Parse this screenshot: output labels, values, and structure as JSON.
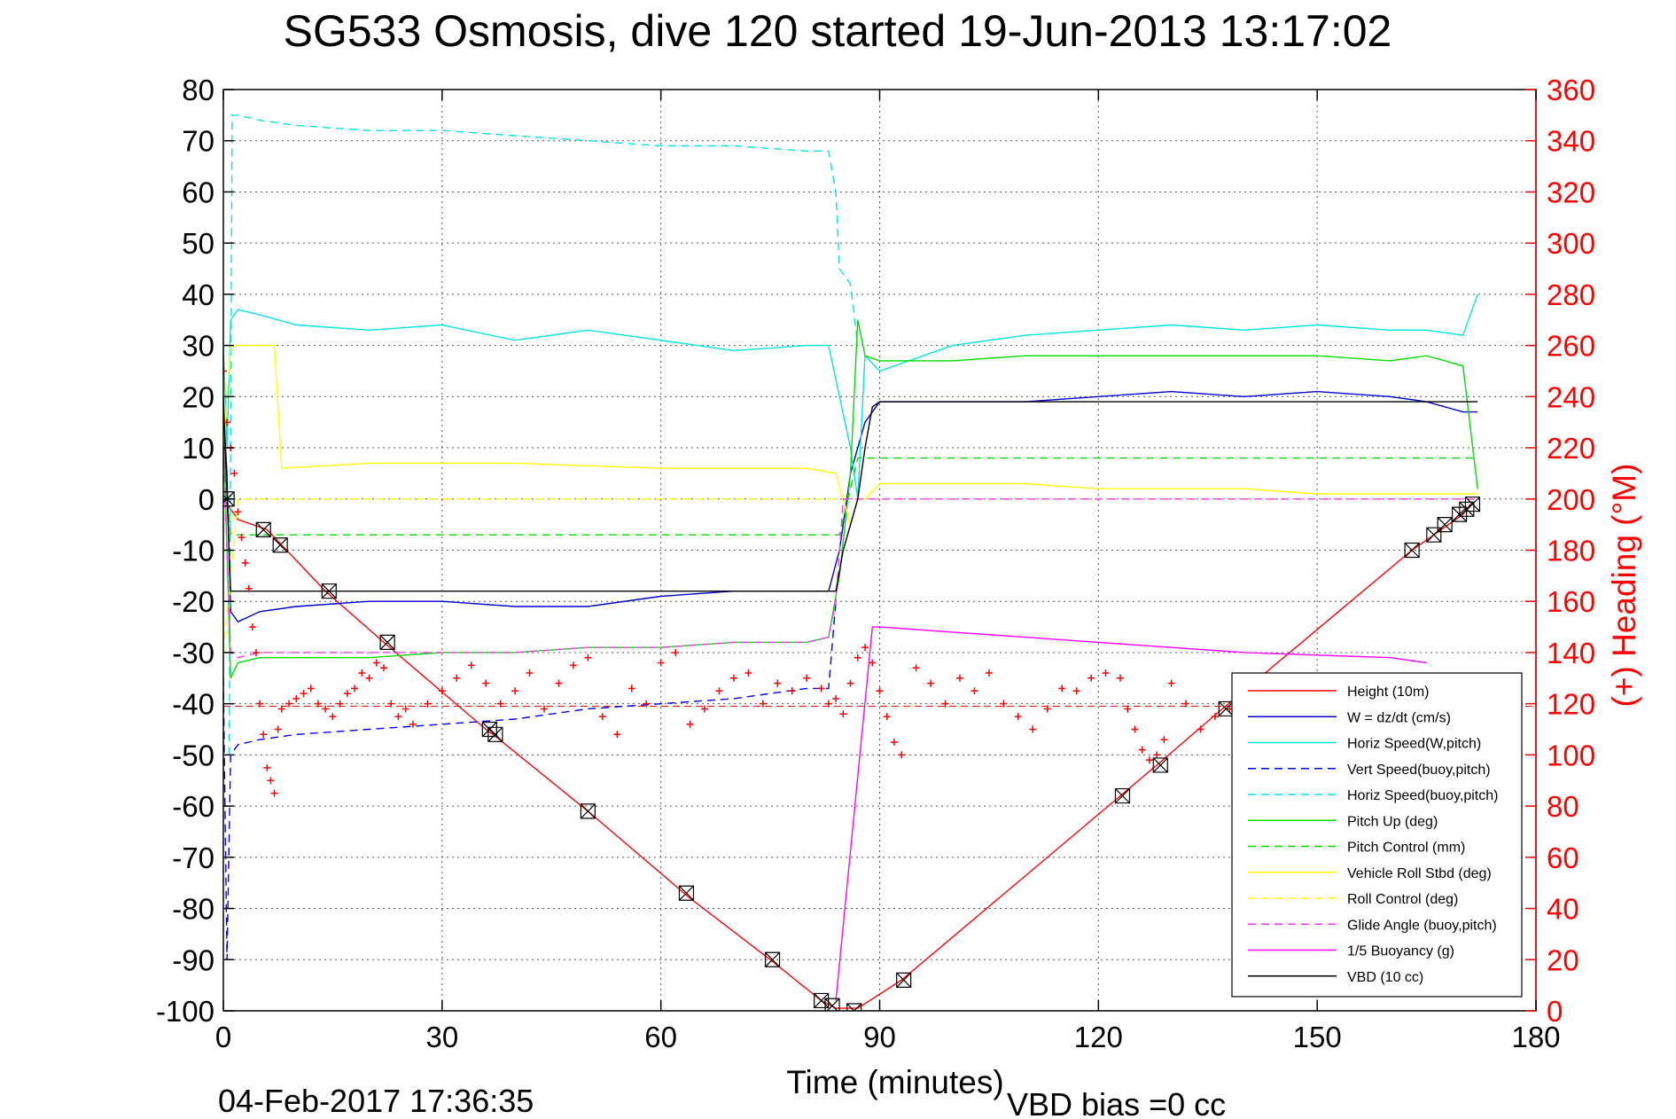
{
  "chart_data": {
    "type": "line",
    "title": "SG533 Osmosis, dive 120 started 19-Jun-2013 13:17:02",
    "xlabel": "Time (minutes)",
    "ylabel_right": "(+) Heading (°M)",
    "timestamp": "04-Feb-2017 17:36:35",
    "vbd_bias": "VBD bias =0 cc",
    "xlim": [
      0,
      180
    ],
    "ylim": [
      -100,
      80
    ],
    "ylim_right": [
      0,
      360
    ],
    "xticks": [
      "0",
      "30",
      "60",
      "90",
      "120",
      "150",
      "180"
    ],
    "yticks": [
      "80",
      "70",
      "60",
      "50",
      "40",
      "30",
      "20",
      "10",
      "0",
      "-10",
      "-20",
      "-30",
      "-40",
      "-50",
      "-60",
      "-70",
      "-80",
      "-90",
      "-100"
    ],
    "yticks_right": [
      "360",
      "340",
      "320",
      "300",
      "280",
      "260",
      "240",
      "220",
      "200",
      "180",
      "160",
      "140",
      "120",
      "100",
      "80",
      "60",
      "40",
      "20",
      "0"
    ],
    "grid": true,
    "legend_position": "bottom-right",
    "heading_reference": 119,
    "series": [
      {
        "name": "Height (10m)",
        "color": "#ff0000",
        "style": "solid",
        "x": [
          0,
          2,
          6,
          8,
          14,
          22,
          36,
          37,
          50,
          64,
          75,
          82,
          84,
          87,
          93,
          123,
          128,
          137,
          163,
          166,
          168,
          170,
          171
        ],
        "y": [
          0,
          -4,
          -6,
          -9,
          -18,
          -28,
          -45,
          -46,
          -61,
          -78,
          -90,
          -98,
          -99.5,
          -99.5,
          -94,
          -58,
          -52,
          -41,
          -10,
          -7,
          -5,
          -3,
          -1
        ]
      },
      {
        "name": "W = dz/dt (cm/s)",
        "color": "#0000cc",
        "style": "solid",
        "x": [
          0,
          0.5,
          1,
          2,
          5,
          10,
          20,
          30,
          40,
          50,
          60,
          70,
          80,
          83,
          84.5,
          86,
          88,
          90,
          100,
          110,
          120,
          130,
          140,
          150,
          160,
          165,
          170,
          172
        ],
        "y": [
          18,
          5,
          -22,
          -24,
          -22,
          -21,
          -20,
          -20,
          -21,
          -21,
          -19,
          -18,
          -18,
          -18,
          -10,
          5,
          15,
          19,
          19,
          19,
          20,
          21,
          20,
          21,
          20,
          19,
          17,
          17
        ]
      },
      {
        "name": "Horiz Speed(W,pitch)",
        "color": "#00e5e5",
        "style": "solid",
        "x": [
          0,
          0.5,
          1,
          2,
          5,
          10,
          20,
          30,
          40,
          50,
          60,
          70,
          80,
          83,
          84.5,
          86,
          87,
          88,
          90,
          100,
          110,
          120,
          130,
          140,
          150,
          160,
          165,
          170,
          172
        ],
        "y": [
          30,
          10,
          35,
          37,
          36,
          34,
          33,
          34,
          31,
          33,
          31,
          29,
          30,
          30,
          20,
          10,
          0,
          28,
          25,
          30,
          32,
          33,
          34,
          33,
          34,
          33,
          33,
          32,
          40
        ]
      },
      {
        "name": "Vert Speed(buoy,pitch)",
        "color": "#0000ff",
        "style": "dashed",
        "x": [
          0,
          0.5,
          1,
          2,
          5,
          10,
          20,
          30,
          40,
          50,
          60,
          70,
          80,
          83,
          84
        ],
        "y": [
          -35,
          -90,
          -50,
          -48,
          -47,
          -46,
          -45,
          -44,
          -43,
          -41,
          -40,
          -39,
          -37,
          -37,
          -20
        ]
      },
      {
        "name": "Horiz Speed(buoy,pitch)",
        "color": "#00e5e5",
        "style": "dashed",
        "x": [
          0.8,
          1.2,
          2,
          5,
          10,
          20,
          30,
          40,
          50,
          60,
          70,
          80,
          83,
          84,
          84.5,
          86,
          87
        ],
        "y": [
          -50,
          75,
          75,
          74,
          73,
          72,
          72,
          71,
          70,
          69,
          69,
          68,
          68,
          60,
          45,
          42,
          30
        ]
      },
      {
        "name": "Pitch Up (deg)",
        "color": "#00dd00",
        "style": "solid",
        "x": [
          0,
          1,
          2,
          5,
          10,
          20,
          30,
          40,
          50,
          60,
          70,
          80,
          83,
          84.5,
          86,
          87,
          88,
          90,
          100,
          110,
          120,
          130,
          140,
          150,
          160,
          165,
          170,
          172
        ],
        "y": [
          15,
          -35,
          -32,
          -31,
          -31,
          -31,
          -30,
          -30,
          -29,
          -29,
          -28,
          -28,
          -27,
          -15,
          5,
          35,
          28,
          27,
          27,
          28,
          28,
          28,
          28,
          28,
          27,
          28,
          26,
          2
        ]
      },
      {
        "name": "Pitch Control (mm)",
        "color": "#00dd00",
        "style": "dashed",
        "x": [
          0,
          1,
          2,
          84,
          84.5,
          87,
          88,
          172
        ],
        "y": [
          10,
          -7,
          -7,
          -7,
          -7,
          8,
          8,
          8
        ]
      },
      {
        "name": "Vehicle Roll Stbd (deg)",
        "color": "#ffff00",
        "style": "solid",
        "x": [
          0,
          1,
          2,
          7,
          8,
          20,
          40,
          60,
          80,
          84,
          86,
          87,
          88,
          90,
          100,
          110,
          120,
          130,
          140,
          150,
          160,
          170,
          172
        ],
        "y": [
          10,
          30,
          30,
          30,
          6,
          7,
          7,
          6,
          6,
          5,
          -5,
          0,
          0,
          3,
          3,
          3,
          2,
          2,
          2,
          1,
          1,
          1,
          1
        ]
      },
      {
        "name": "Roll Control (deg)",
        "color": "#ffff00",
        "style": "dashed",
        "x": [
          0,
          2,
          7,
          8,
          84,
          86,
          88,
          172
        ],
        "y": [
          -30,
          0,
          0,
          0,
          0,
          0,
          0,
          0
        ]
      },
      {
        "name": "Glide Angle (buoy,pitch)",
        "color": "#ff33ff",
        "style": "dashed",
        "x": [
          0,
          1,
          2,
          5,
          10,
          20,
          30,
          40,
          50,
          60,
          70,
          80,
          83,
          84,
          85,
          86,
          90,
          120,
          150,
          172
        ],
        "y": [
          10,
          -30,
          -31,
          -30,
          -30,
          -30,
          -30,
          -30,
          -29,
          -29,
          -28,
          -28,
          -27,
          -20,
          0,
          0,
          0,
          0,
          0,
          0
        ]
      },
      {
        "name": "1/5 Buoyancy (g)",
        "color": "#ff00ff",
        "style": "solid",
        "x": [
          84,
          89,
          90,
          100,
          120,
          140,
          160,
          165
        ],
        "y": [
          -98,
          -25,
          -25,
          -26,
          -28,
          -30,
          -31,
          -32
        ]
      },
      {
        "name": "VBD (10 cc)",
        "color": "#000000",
        "style": "solid",
        "x": [
          0,
          1,
          2,
          10,
          20,
          40,
          60,
          83,
          84,
          85,
          87,
          88,
          89,
          90,
          110,
          130,
          150,
          172
        ],
        "y": [
          20,
          -18,
          -18,
          -18,
          -18,
          -18,
          -18,
          -18,
          -18,
          -10,
          0,
          10,
          18,
          19,
          19,
          19,
          19,
          19
        ]
      }
    ],
    "heading_points": {
      "name": "(+) Heading",
      "color": "#ff0000",
      "marker": "+",
      "x": [
        0,
        0.5,
        1,
        1.5,
        2,
        2.5,
        3,
        3.5,
        4,
        4.5,
        5,
        5.5,
        6,
        6.5,
        7,
        7.5,
        8,
        9,
        10,
        11,
        12,
        13,
        14,
        15,
        16,
        17,
        18,
        19,
        20,
        21,
        22,
        23,
        24,
        25,
        26,
        28,
        30,
        32,
        34,
        36,
        38,
        40,
        42,
        44,
        46,
        48,
        50,
        52,
        54,
        56,
        58,
        60,
        62,
        64,
        66,
        68,
        70,
        72,
        74,
        76,
        78,
        80,
        82,
        83,
        84,
        85,
        86,
        87,
        88,
        89,
        90,
        91,
        92,
        93,
        95,
        97,
        99,
        101,
        103,
        105,
        107,
        109,
        111,
        113,
        115,
        117,
        119,
        121,
        123,
        124,
        125,
        126,
        127,
        128,
        129,
        130,
        132,
        134,
        136,
        138,
        140
      ],
      "y": [
        250,
        230,
        220,
        210,
        195,
        185,
        175,
        165,
        150,
        140,
        120,
        108,
        95,
        90,
        85,
        110,
        118,
        120,
        122,
        124,
        126,
        120,
        118,
        115,
        120,
        124,
        126,
        132,
        130,
        136,
        134,
        120,
        115,
        118,
        112,
        120,
        125,
        130,
        135,
        128,
        120,
        125,
        132,
        118,
        128,
        135,
        138,
        115,
        108,
        126,
        120,
        136,
        140,
        112,
        118,
        125,
        130,
        132,
        120,
        128,
        125,
        130,
        126,
        120,
        122,
        116,
        128,
        138,
        142,
        136,
        125,
        115,
        105,
        100,
        134,
        128,
        120,
        130,
        125,
        132,
        120,
        115,
        110,
        118,
        126,
        125,
        130,
        132,
        130,
        118,
        110,
        102,
        98,
        100,
        106,
        128,
        120,
        110,
        115,
        118,
        120
      ]
    },
    "height_markers": {
      "x": [
        0.5,
        5.5,
        7.8,
        14.5,
        22.5,
        36.5,
        37.3,
        50,
        63.5,
        75.3,
        82,
        83.5,
        86.5,
        93.3,
        123.3,
        128.5,
        137.5,
        163,
        166,
        167.5,
        169.5,
        170.5,
        171.3
      ],
      "y": [
        0,
        -6,
        -9,
        -18,
        -28,
        -45,
        -46,
        -61,
        -77,
        -90,
        -98,
        -99,
        -100,
        -94,
        -58,
        -52,
        -41,
        -10,
        -7,
        -5,
        -3,
        -2,
        -1
      ]
    }
  }
}
